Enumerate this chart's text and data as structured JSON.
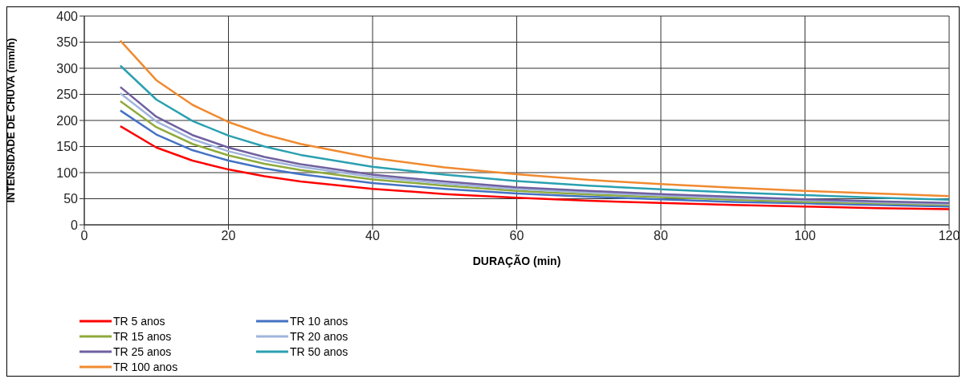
{
  "chart_data": {
    "type": "line",
    "xlabel": "DURAÇÃO (min)",
    "ylabel": "INTENSIDADE DE CHUVA  (mm/h)",
    "x": [
      5,
      10,
      15,
      20,
      25,
      30,
      40,
      50,
      60,
      70,
      80,
      90,
      100,
      110,
      120
    ],
    "xlim": [
      0,
      120
    ],
    "xticks": [
      0,
      20,
      40,
      60,
      80,
      100,
      120
    ],
    "ylim": [
      0,
      400
    ],
    "yticks": [
      0,
      50,
      100,
      150,
      200,
      250,
      300,
      350,
      400
    ],
    "grid": true,
    "legend": "bottom left",
    "marker": "none",
    "line_style": "solid",
    "series": [
      {
        "name": "TR 5 anos",
        "color": "#ff0000",
        "values": [
          189,
          148,
          123,
          106,
          93,
          83,
          69,
          59,
          52,
          46,
          42,
          38,
          35,
          32,
          30
        ]
      },
      {
        "name": "TR 10 anos",
        "color": "#4472c4",
        "values": [
          219,
          173,
          143,
          123,
          108,
          97,
          80,
          69,
          60,
          54,
          49,
          44,
          41,
          38,
          35
        ]
      },
      {
        "name": "TR 15 anos",
        "color": "#8faa3c",
        "values": [
          237,
          187,
          155,
          133,
          117,
          105,
          87,
          75,
          65,
          58,
          53,
          48,
          44,
          41,
          38
        ]
      },
      {
        "name": "TR 20 anos",
        "color": "#a0b4dc",
        "values": [
          252,
          198,
          164,
          141,
          124,
          111,
          92,
          79,
          69,
          62,
          56,
          51,
          47,
          43,
          40
        ]
      },
      {
        "name": "TR 25 anos",
        "color": "#7060a0",
        "values": [
          264,
          207,
          172,
          148,
          130,
          116,
          96,
          83,
          72,
          65,
          59,
          54,
          49,
          45,
          42
        ]
      },
      {
        "name": "TR 50 anos",
        "color": "#2aa0b0",
        "values": [
          305,
          240,
          199,
          171,
          150,
          134,
          111,
          96,
          84,
          75,
          68,
          62,
          57,
          52,
          48
        ]
      },
      {
        "name": "TR 100 anos",
        "color": "#f08a30",
        "values": [
          353,
          277,
          230,
          197,
          173,
          155,
          128,
          110,
          97,
          86,
          78,
          71,
          65,
          60,
          55
        ]
      }
    ]
  }
}
